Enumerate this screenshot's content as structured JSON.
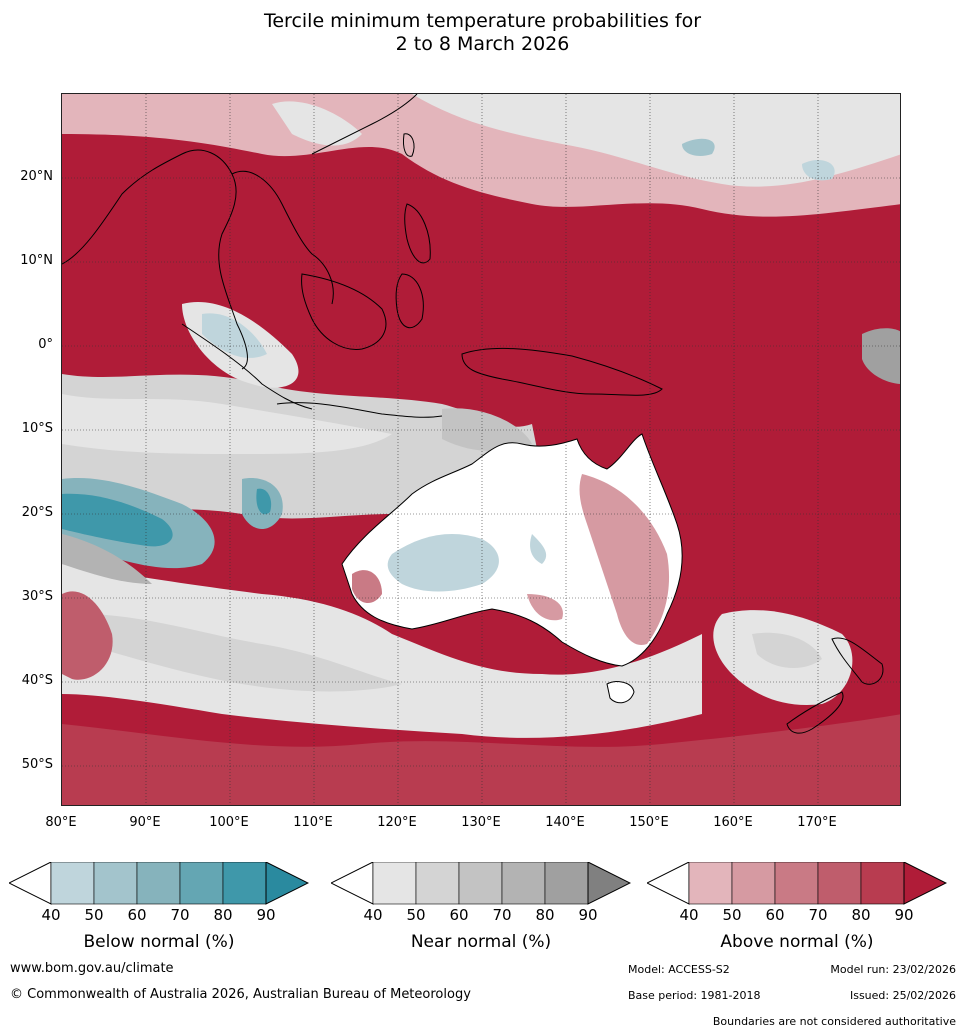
{
  "title_line1": "Tercile minimum temperature probabilities for",
  "title_line2": "2 to 8 March 2026",
  "lat_labels": [
    "20°N",
    "10°N",
    "0°",
    "10°S",
    "20°S",
    "30°S",
    "40°S",
    "50°S"
  ],
  "lon_labels": [
    "80°E",
    "90°E",
    "100°E",
    "110°E",
    "120°E",
    "130°E",
    "140°E",
    "150°E",
    "160°E",
    "170°E"
  ],
  "colorbars": [
    {
      "title": "Below normal (%)",
      "ticks": [
        "40",
        "50",
        "60",
        "70",
        "80",
        "90"
      ],
      "colors": [
        "#ffffff",
        "#bfd5dc",
        "#a3c4cc",
        "#86b3bc",
        "#64a6b3",
        "#3f98aa",
        "#2a8a9f"
      ]
    },
    {
      "title": "Near normal (%)",
      "ticks": [
        "40",
        "50",
        "60",
        "70",
        "80",
        "90"
      ],
      "colors": [
        "#ffffff",
        "#e5e5e5",
        "#d4d4d4",
        "#c3c3c3",
        "#b3b3b3",
        "#a0a0a0",
        "#808080"
      ]
    },
    {
      "title": "Above normal (%)",
      "ticks": [
        "40",
        "50",
        "60",
        "70",
        "80",
        "90"
      ],
      "colors": [
        "#ffffff",
        "#e3b5bb",
        "#d69aa2",
        "#c97a85",
        "#bf5d6c",
        "#b83c50",
        "#b01c38"
      ]
    }
  ],
  "footer": {
    "website": "www.bom.gov.au/climate",
    "copyright": "© Commonwealth of Australia 2026, Australian Bureau of Meteorology",
    "model": "Model: ACCESS-S2",
    "base_period": "Base period: 1981-2018",
    "model_run": "Model run: 23/02/2026",
    "issued": "Issued: 25/02/2026",
    "disclaimer": "Boundaries are not considered authoritative"
  }
}
